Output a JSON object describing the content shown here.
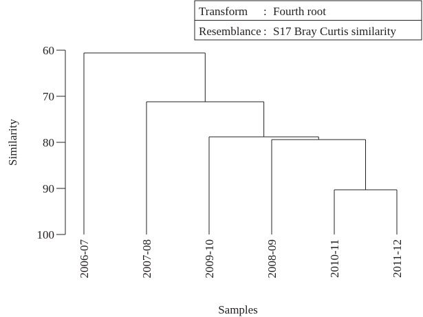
{
  "legend_box": {
    "rows": [
      {
        "key": "Transform",
        "separator": ":",
        "value": "Fourth root"
      },
      {
        "key": "Resemblance",
        "separator": ":",
        "value": "S17 Bray Curtis similarity"
      }
    ]
  },
  "chart_data": {
    "type": "dendrogram",
    "title": "",
    "xlabel": "Samples",
    "ylabel": "Similarity",
    "ylim": [
      60,
      100
    ],
    "y_inverted": true,
    "yticks": [
      60,
      70,
      80,
      90,
      100
    ],
    "leaves": [
      "2006-07",
      "2007-08",
      "2009-10",
      "2008-09",
      "2010-11",
      "2011-12"
    ],
    "merges": [
      {
        "left": "2010-11",
        "right": "2011-12",
        "similarity": 90.3
      },
      {
        "left": "2008-09",
        "right": "2010-11 + 2011-12",
        "similarity": 79.4
      },
      {
        "left": "2009-10",
        "right": "2008-09 + 2010-11 + 2011-12",
        "similarity": 78.8
      },
      {
        "left": "2007-08",
        "right": "2009-10 + 2008-09 + 2010-11 + 2011-12",
        "similarity": 71.2
      },
      {
        "left": "2006-07",
        "right": "all others",
        "similarity": 60.6
      }
    ]
  }
}
